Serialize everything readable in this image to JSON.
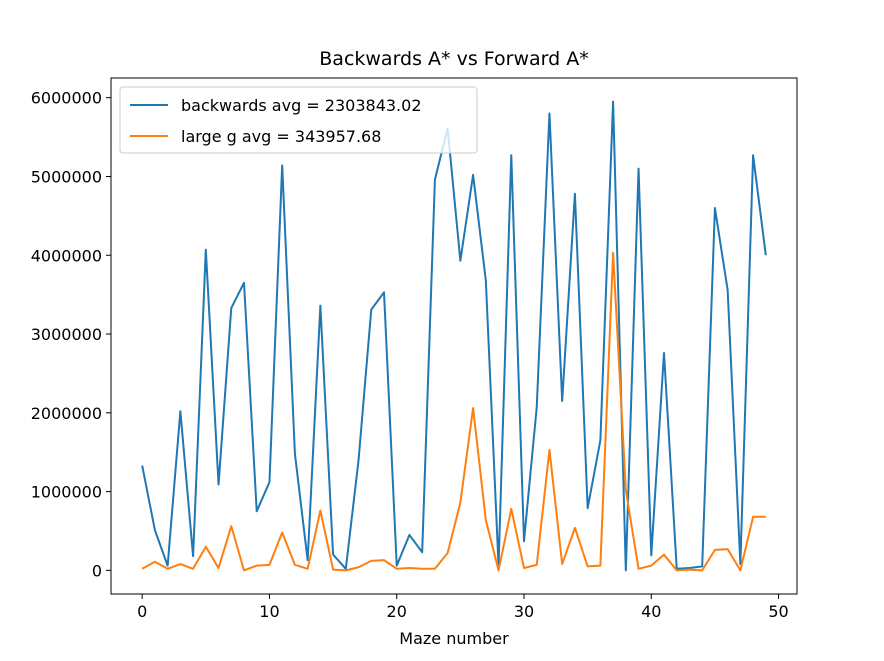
{
  "chart_data": {
    "type": "line",
    "title": "Backwards A* vs Forward A*",
    "xlabel": "Maze number",
    "ylabel": "",
    "xlim": [
      -2.45,
      51.45
    ],
    "ylim": [
      -300000,
      6250000
    ],
    "x_ticks": [
      0,
      10,
      20,
      30,
      40,
      50
    ],
    "y_ticks": [
      0,
      1000000,
      2000000,
      3000000,
      4000000,
      5000000,
      6000000
    ],
    "y_tick_labels": [
      "0",
      "1000000",
      "2000000",
      "3000000",
      "4000000",
      "5000000",
      "6000000"
    ],
    "legend_position": "upper-left",
    "grid": false,
    "x": [
      0,
      1,
      2,
      3,
      4,
      5,
      6,
      7,
      8,
      9,
      10,
      11,
      12,
      13,
      14,
      15,
      16,
      17,
      18,
      19,
      20,
      21,
      22,
      23,
      24,
      25,
      26,
      27,
      28,
      29,
      30,
      31,
      32,
      33,
      34,
      35,
      36,
      37,
      38,
      39,
      40,
      41,
      42,
      43,
      44,
      45,
      46,
      47,
      48,
      49
    ],
    "series": [
      {
        "name": "backwards avg = 2303843.02",
        "color": "#1f77b4",
        "values": [
          1330000,
          510000,
          60000,
          2020000,
          180000,
          4070000,
          1090000,
          3330000,
          3650000,
          750000,
          1120000,
          5140000,
          1480000,
          130000,
          3360000,
          200000,
          20000,
          1400000,
          3310000,
          3530000,
          60000,
          450000,
          230000,
          4960000,
          5610000,
          3930000,
          5020000,
          3680000,
          60000,
          5270000,
          370000,
          2070000,
          5800000,
          2150000,
          4780000,
          790000,
          1650000,
          5950000,
          0,
          5100000,
          190000,
          2760000,
          20000,
          30000,
          50000,
          4600000,
          3560000,
          80000,
          5270000,
          4000000
        ]
      },
      {
        "name": "large g avg = 343957.68",
        "color": "#ff7f0e",
        "values": [
          20000,
          110000,
          20000,
          80000,
          20000,
          300000,
          30000,
          560000,
          0,
          60000,
          70000,
          480000,
          70000,
          20000,
          760000,
          10000,
          0,
          40000,
          120000,
          130000,
          20000,
          30000,
          20000,
          20000,
          220000,
          860000,
          2060000,
          640000,
          0,
          780000,
          30000,
          70000,
          1530000,
          80000,
          540000,
          50000,
          60000,
          4030000,
          1020000,
          20000,
          60000,
          200000,
          0,
          10000,
          0,
          260000,
          270000,
          0,
          680000,
          680000
        ]
      }
    ]
  }
}
